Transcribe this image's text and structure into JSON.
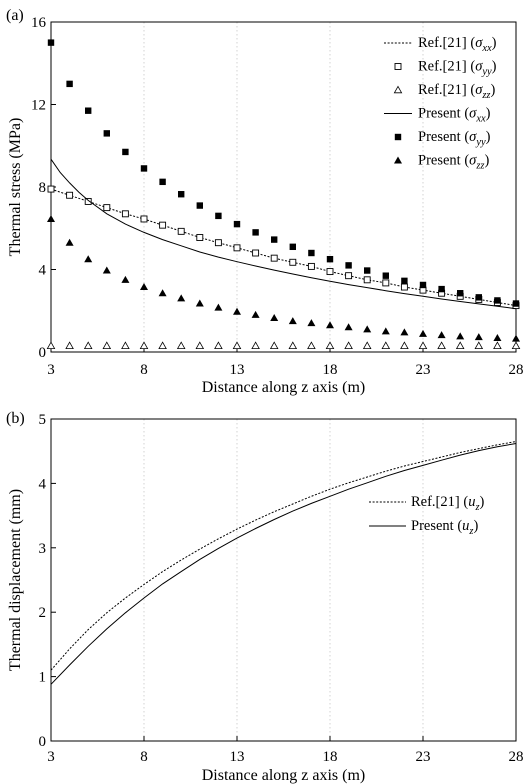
{
  "chart_data": [
    {
      "type": "scatter",
      "panel_label": "(a)",
      "xlabel": "Distance along z axis (m)",
      "ylabel": "Thermal stress (MPa)",
      "xlim": [
        3,
        28
      ],
      "ylim": [
        0,
        16
      ],
      "xticks": [
        3,
        8,
        13,
        18,
        23,
        28
      ],
      "yticks": [
        0,
        4,
        8,
        12,
        16
      ],
      "grid": "vertical dotted",
      "legend_position": "top-right",
      "series": [
        {
          "name": "Ref.[21] (σxx)",
          "legend_main": "Ref.[21]",
          "legend_sym": "σ",
          "legend_sub": "xx",
          "style": "dotted-line",
          "x": [
            3,
            4,
            5,
            6,
            7,
            8,
            9,
            10,
            11,
            12,
            13,
            14,
            15,
            16,
            17,
            18,
            19,
            20,
            21,
            22,
            23,
            24,
            25,
            26,
            27,
            28
          ],
          "y": [
            7.9,
            7.6,
            7.3,
            7.0,
            6.7,
            6.45,
            6.15,
            5.85,
            5.55,
            5.3,
            5.05,
            4.8,
            4.55,
            4.35,
            4.15,
            3.9,
            3.7,
            3.5,
            3.35,
            3.15,
            3.0,
            2.85,
            2.7,
            2.55,
            2.4,
            2.25
          ]
        },
        {
          "name": "Ref.[21] (σyy)",
          "legend_main": "Ref.[21]",
          "legend_sym": "σ",
          "legend_sub": "yy",
          "style": "open-square",
          "x": [
            3,
            4,
            5,
            6,
            7,
            8,
            9,
            10,
            11,
            12,
            13,
            14,
            15,
            16,
            17,
            18,
            19,
            20,
            21,
            22,
            23,
            24,
            25,
            26,
            27,
            28
          ],
          "y": [
            7.9,
            7.6,
            7.3,
            7.0,
            6.7,
            6.45,
            6.15,
            5.85,
            5.55,
            5.3,
            5.05,
            4.8,
            4.55,
            4.35,
            4.15,
            3.9,
            3.7,
            3.5,
            3.35,
            3.15,
            3.0,
            2.85,
            2.7,
            2.55,
            2.4,
            2.25
          ]
        },
        {
          "name": "Ref.[21] (σzz)",
          "legend_main": "Ref.[21]",
          "legend_sym": "σ",
          "legend_sub": "zz",
          "style": "open-triangle",
          "x": [
            3,
            4,
            5,
            6,
            7,
            8,
            9,
            10,
            11,
            12,
            13,
            14,
            15,
            16,
            17,
            18,
            19,
            20,
            21,
            22,
            23,
            24,
            25,
            26,
            27,
            28
          ],
          "y": [
            0.3,
            0.3,
            0.3,
            0.3,
            0.3,
            0.3,
            0.3,
            0.3,
            0.3,
            0.3,
            0.3,
            0.3,
            0.3,
            0.3,
            0.3,
            0.3,
            0.3,
            0.3,
            0.3,
            0.3,
            0.3,
            0.3,
            0.3,
            0.3,
            0.3,
            0.3
          ]
        },
        {
          "name": "Present (σxx)",
          "legend_main": "Present",
          "legend_sym": "σ",
          "legend_sub": "xx",
          "style": "solid-line",
          "x": [
            3,
            3.5,
            4,
            4.5,
            5,
            6,
            7,
            8,
            9,
            10,
            11,
            12,
            13,
            14,
            15,
            16,
            17,
            18,
            19,
            20,
            21,
            22,
            23,
            24,
            25,
            26,
            27,
            28
          ],
          "y": [
            9.35,
            8.7,
            8.2,
            7.75,
            7.35,
            6.7,
            6.2,
            5.8,
            5.45,
            5.15,
            4.85,
            4.6,
            4.38,
            4.17,
            3.97,
            3.78,
            3.6,
            3.43,
            3.27,
            3.12,
            2.97,
            2.83,
            2.7,
            2.57,
            2.45,
            2.33,
            2.22,
            2.1
          ]
        },
        {
          "name": "Present (σyy)",
          "legend_main": "Present",
          "legend_sym": "σ",
          "legend_sub": "yy",
          "style": "filled-square",
          "x": [
            3,
            4,
            5,
            6,
            7,
            8,
            9,
            10,
            11,
            12,
            13,
            14,
            15,
            16,
            17,
            18,
            19,
            20,
            21,
            22,
            23,
            24,
            25,
            26,
            27,
            28
          ],
          "y": [
            15.0,
            13.0,
            11.7,
            10.6,
            9.7,
            8.9,
            8.25,
            7.65,
            7.1,
            6.6,
            6.2,
            5.8,
            5.45,
            5.1,
            4.8,
            4.5,
            4.2,
            3.95,
            3.7,
            3.45,
            3.25,
            3.05,
            2.85,
            2.65,
            2.5,
            2.35
          ]
        },
        {
          "name": "Present (σzz)",
          "legend_main": "Present",
          "legend_sym": "σ",
          "legend_sub": "zz",
          "style": "filled-triangle",
          "x": [
            3,
            4,
            5,
            6,
            7,
            8,
            9,
            10,
            11,
            12,
            13,
            14,
            15,
            16,
            17,
            18,
            19,
            20,
            21,
            22,
            23,
            24,
            25,
            26,
            27,
            28
          ],
          "y": [
            6.45,
            5.3,
            4.5,
            3.95,
            3.5,
            3.15,
            2.85,
            2.6,
            2.35,
            2.15,
            1.95,
            1.8,
            1.65,
            1.5,
            1.4,
            1.3,
            1.2,
            1.1,
            1.0,
            0.95,
            0.88,
            0.82,
            0.76,
            0.72,
            0.68,
            0.65
          ]
        }
      ]
    },
    {
      "type": "line",
      "panel_label": "(b)",
      "xlabel": "Distance along z axis (m)",
      "ylabel": "Thermal displacement (mm)",
      "xlim": [
        3,
        28
      ],
      "ylim": [
        0,
        5
      ],
      "xticks": [
        3,
        8,
        13,
        18,
        23,
        28
      ],
      "yticks": [
        0,
        1,
        2,
        3,
        4,
        5
      ],
      "grid": "vertical dotted",
      "legend_position": "right",
      "series": [
        {
          "name": "Ref.[21] (uz)",
          "legend_main": "Ref.[21]",
          "legend_sym": "u",
          "legend_sub": "z",
          "style": "dotted-line",
          "x": [
            3,
            4,
            5,
            6,
            7,
            8,
            9,
            10,
            11,
            12,
            13,
            14,
            15,
            16,
            17,
            18,
            19,
            20,
            21,
            22,
            23,
            24,
            25,
            26,
            27,
            28
          ],
          "y": [
            1.1,
            1.43,
            1.73,
            1.99,
            2.22,
            2.43,
            2.63,
            2.81,
            2.98,
            3.14,
            3.29,
            3.43,
            3.56,
            3.68,
            3.8,
            3.91,
            4.01,
            4.1,
            4.19,
            4.27,
            4.34,
            4.41,
            4.48,
            4.54,
            4.6,
            4.65
          ]
        },
        {
          "name": "Present (uz)",
          "legend_main": "Present",
          "legend_sym": "u",
          "legend_sub": "z",
          "style": "solid-line",
          "x": [
            3,
            4,
            5,
            6,
            7,
            8,
            9,
            10,
            11,
            12,
            13,
            14,
            15,
            16,
            17,
            18,
            19,
            20,
            21,
            22,
            23,
            24,
            25,
            26,
            27,
            28
          ],
          "y": [
            0.88,
            1.18,
            1.47,
            1.74,
            1.99,
            2.22,
            2.44,
            2.63,
            2.82,
            2.99,
            3.15,
            3.3,
            3.44,
            3.57,
            3.69,
            3.8,
            3.91,
            4.01,
            4.11,
            4.2,
            4.28,
            4.36,
            4.44,
            4.51,
            4.57,
            4.62
          ]
        }
      ]
    }
  ]
}
